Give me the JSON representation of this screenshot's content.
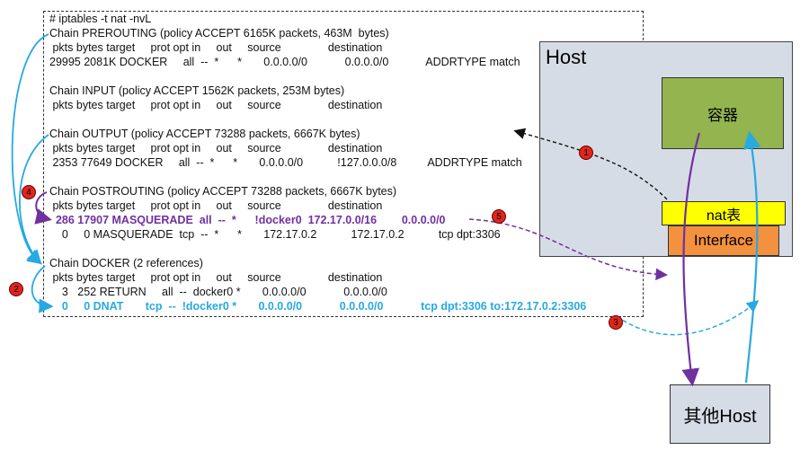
{
  "terminal": {
    "lines": [
      "# iptables -t nat -nvL",
      "Chain PREROUTING (policy ACCEPT 6165K packets, 463M  bytes)",
      " pkts bytes target     prot opt in     out     source               destination",
      "29995 2081K DOCKER     all  --  *      *       0.0.0.0/0            0.0.0.0/0            ADDRTYPE match",
      "",
      "Chain INPUT (policy ACCEPT 1562K packets, 253M bytes)",
      " pkts bytes target     prot opt in     out     source               destination",
      "",
      "Chain OUTPUT (policy ACCEPT 73288 packets, 6667K bytes)",
      " pkts bytes target     prot opt in     out     source               destination",
      " 2353 77649 DOCKER     all  --  *      *       0.0.0.0/0           !127.0.0.0/8          ADDRTYPE match",
      "",
      "Chain POSTROUTING (policy ACCEPT 73288 packets, 6667K bytes)",
      " pkts bytes target     prot opt in     out     source               destination",
      "  286 17907 MASQUERADE  all  --  *      !docker0  172.17.0.0/16        0.0.0.0/0",
      "    0     0 MASQUERADE  tcp  --  *      *       172.17.0.2           172.17.0.2           tcp dpt:3306",
      "",
      "Chain DOCKER (2 references)",
      " pkts bytes target     prot opt in     out     source               destination",
      "    3   252 RETURN     all  --  docker0 *       0.0.0.0/0            0.0.0.0/0",
      "    0     0 DNAT       tcp  --  !docker0 *       0.0.0.0/0            0.0.0.0/0            tcp dpt:3306 to:172.17.0.2:3306"
    ]
  },
  "host": {
    "label": "Host",
    "container_label": "容器",
    "nat_label": "nat表",
    "interface_label": "Interface"
  },
  "other_host": {
    "label": "其他Host"
  },
  "steps": [
    "1",
    "2",
    "3",
    "4",
    "5"
  ],
  "colors": {
    "host_fill": "#d6dce5",
    "container_fill": "#93b44e",
    "nat_fill": "#ffff00",
    "interface_fill": "#f4913f",
    "other_host_fill": "#d6dce5",
    "purple_path": "#7030a0",
    "cyan_path": "#27a9e1",
    "badge": "#e0261b"
  }
}
